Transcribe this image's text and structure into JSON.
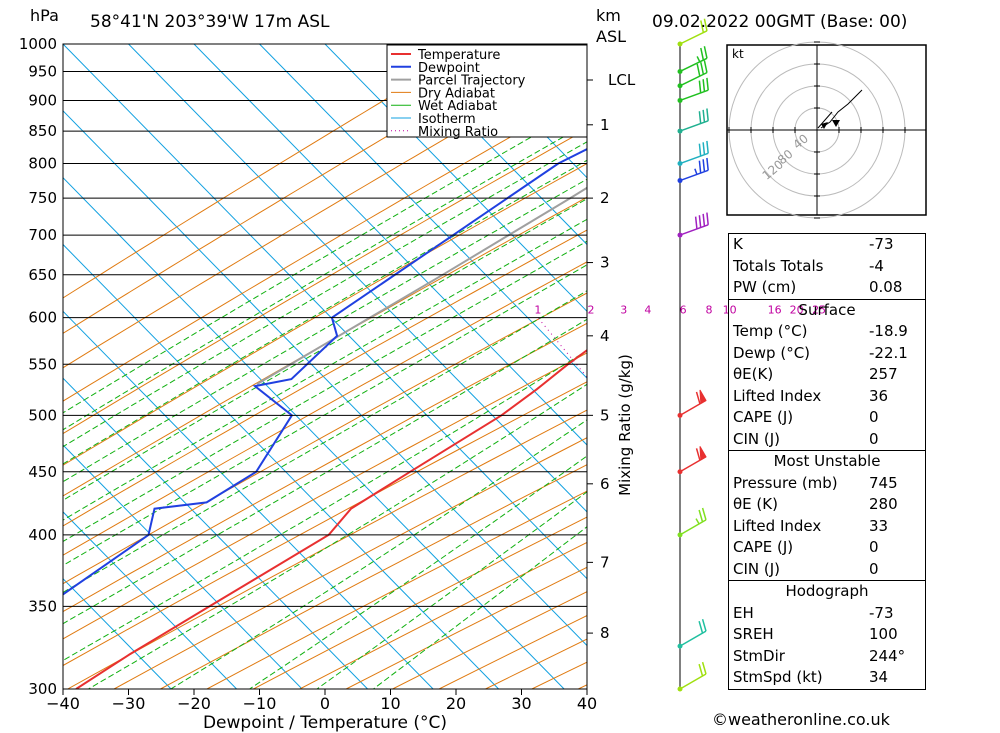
{
  "header": {
    "pressure_unit": "hPa",
    "location": "58°41'N  203°39'W  17m  ASL",
    "height_unit_top": "km",
    "height_unit_bottom": "ASL",
    "datetime": "09.02.2022  00GMT  (Base: 00)"
  },
  "chart_data": {
    "type": "skew-t log-p",
    "xlabel": "Dewpoint / Temperature (°C)",
    "ylabel": "hPa",
    "mixing_ratio_label": "Mixing Ratio (g/kg)",
    "x_ticks": [
      -40,
      -30,
      -20,
      -10,
      0,
      10,
      20,
      30,
      40
    ],
    "pressure_levels": [
      300,
      350,
      400,
      450,
      500,
      550,
      600,
      650,
      700,
      750,
      800,
      850,
      900,
      950,
      1000
    ],
    "xlim": [
      -40,
      40
    ],
    "ylim": [
      1000,
      300
    ],
    "height_km_ticks": [
      {
        "label": "8",
        "p": 333
      },
      {
        "label": "7",
        "p": 380
      },
      {
        "label": "6",
        "p": 440
      },
      {
        "label": "5",
        "p": 500
      },
      {
        "label": "4",
        "p": 580
      },
      {
        "label": "3",
        "p": 665
      },
      {
        "label": "2",
        "p": 750
      },
      {
        "label": "1",
        "p": 860
      },
      {
        "label": "LCL",
        "p": 935
      }
    ],
    "mixing_ratio_values": [
      "1",
      "2",
      "3",
      "4",
      "6",
      "8",
      "10",
      "16",
      "20",
      "25"
    ],
    "legend": [
      "Temperature",
      "Dewpoint",
      "Parcel Trajectory",
      "Dry Adiabat",
      "Wet Adiabat",
      "Isotherm",
      "Mixing Ratio"
    ],
    "colors": {
      "temperature": "#e83030",
      "dewpoint": "#2040e0",
      "parcel": "#a0a0a0",
      "dry_adiabat": "#e07a10",
      "wet_adiabat": "#10b010",
      "isotherm": "#10a0e0",
      "mixing_ratio": "#c000a0"
    },
    "temperature": [
      {
        "p": 1000,
        "t": -18.9
      },
      {
        "p": 950,
        "t": -20
      },
      {
        "p": 900,
        "t": -21.5
      },
      {
        "p": 880,
        "t": -17
      },
      {
        "p": 850,
        "t": -14.5
      },
      {
        "p": 800,
        "t": -11.5
      },
      {
        "p": 760,
        "t": -8.8
      },
      {
        "p": 745,
        "t": -6.5
      },
      {
        "p": 700,
        "t": -7.2
      },
      {
        "p": 650,
        "t": -8.5
      },
      {
        "p": 620,
        "t": -9.5
      },
      {
        "p": 605,
        "t": -8.5
      },
      {
        "p": 550,
        "t": -11.5
      },
      {
        "p": 525,
        "t": -12.5
      },
      {
        "p": 500,
        "t": -14
      },
      {
        "p": 450,
        "t": -19.5
      },
      {
        "p": 420,
        "t": -23
      },
      {
        "p": 400,
        "t": -22.5
      },
      {
        "p": 350,
        "t": -30
      },
      {
        "p": 320,
        "t": -35
      },
      {
        "p": 300,
        "t": -38
      }
    ],
    "dewpoint": [
      {
        "p": 1000,
        "t": -22.1
      },
      {
        "p": 950,
        "t": -22.8
      },
      {
        "p": 900,
        "t": -24.5
      },
      {
        "p": 885,
        "t": -28
      },
      {
        "p": 860,
        "t": -32
      },
      {
        "p": 850,
        "t": -38
      },
      {
        "p": 800,
        "t": -43
      },
      {
        "p": 600,
        "t": -54.5
      },
      {
        "p": 580,
        "t": -51
      },
      {
        "p": 535,
        "t": -51.5
      },
      {
        "p": 528,
        "t": -56
      },
      {
        "p": 500,
        "t": -46
      },
      {
        "p": 450,
        "t": -43
      },
      {
        "p": 425,
        "t": -46
      },
      {
        "p": 420,
        "t": -53
      },
      {
        "p": 400,
        "t": -50
      },
      {
        "p": 350,
        "t": -55
      },
      {
        "p": 320,
        "t": -55.5
      },
      {
        "p": 310,
        "t": -58
      },
      {
        "p": 300,
        "t": -59
      }
    ],
    "parcel": [
      {
        "p": 1000,
        "t": -18.9
      },
      {
        "p": 935,
        "t": -24.5
      },
      {
        "p": 850,
        "t": -29.5
      },
      {
        "p": 750,
        "t": -36
      },
      {
        "p": 650,
        "t": -44
      },
      {
        "p": 530,
        "t": -56
      }
    ]
  },
  "wind_barbs": [
    {
      "p": 1000,
      "dir": 244,
      "spd": 20,
      "color": "#a0e010"
    },
    {
      "p": 950,
      "dir": 244,
      "spd": 25,
      "color": "#20c020"
    },
    {
      "p": 925,
      "dir": 244,
      "spd": 30,
      "color": "#20c020"
    },
    {
      "p": 900,
      "dir": 250,
      "spd": 30,
      "color": "#20c020"
    },
    {
      "p": 850,
      "dir": 250,
      "spd": 30,
      "color": "#20b090"
    },
    {
      "p": 800,
      "dir": 250,
      "spd": 30,
      "color": "#20b0c0"
    },
    {
      "p": 775,
      "dir": 250,
      "spd": 35,
      "color": "#2040e0"
    },
    {
      "p": 700,
      "dir": 250,
      "spd": 40,
      "color": "#a020c0"
    },
    {
      "p": 500,
      "dir": 240,
      "spd": 60,
      "color": "#e83030"
    },
    {
      "p": 450,
      "dir": 240,
      "spd": 60,
      "color": "#e83030"
    },
    {
      "p": 400,
      "dir": 240,
      "spd": 25,
      "color": "#80e020"
    },
    {
      "p": 325,
      "dir": 240,
      "spd": 20,
      "color": "#20c0a0"
    },
    {
      "p": 300,
      "dir": 240,
      "spd": 20,
      "color": "#a0e010"
    }
  ],
  "hodograph": {
    "unit": "kt",
    "rings": [
      "40",
      "80",
      "120"
    ]
  },
  "indices": {
    "general": [
      {
        "label": "K",
        "value": "-73"
      },
      {
        "label": "Totals Totals",
        "value": "-4"
      },
      {
        "label": "PW (cm)",
        "value": "0.08"
      }
    ],
    "surface_title": "Surface",
    "surface": [
      {
        "label": "Temp (°C)",
        "value": "-18.9"
      },
      {
        "label": "Dewp (°C)",
        "value": "-22.1"
      },
      {
        "label": "θE(K)",
        "value": "257"
      },
      {
        "label": "Lifted Index",
        "value": "36"
      },
      {
        "label": "CAPE (J)",
        "value": "0"
      },
      {
        "label": "CIN (J)",
        "value": "0"
      }
    ],
    "mu_title": "Most Unstable",
    "most_unstable": [
      {
        "label": "Pressure (mb)",
        "value": "745"
      },
      {
        "label": "θE (K)",
        "value": "280"
      },
      {
        "label": "Lifted Index",
        "value": "33"
      },
      {
        "label": "CAPE (J)",
        "value": "0"
      },
      {
        "label": "CIN (J)",
        "value": "0"
      }
    ],
    "hodo_title": "Hodograph",
    "hodograph": [
      {
        "label": "EH",
        "value": "-73"
      },
      {
        "label": "SREH",
        "value": "100"
      },
      {
        "label": "StmDir",
        "value": "244°"
      },
      {
        "label": "StmSpd (kt)",
        "value": "34"
      }
    ]
  },
  "copyright": "©weatheronline.co.uk"
}
